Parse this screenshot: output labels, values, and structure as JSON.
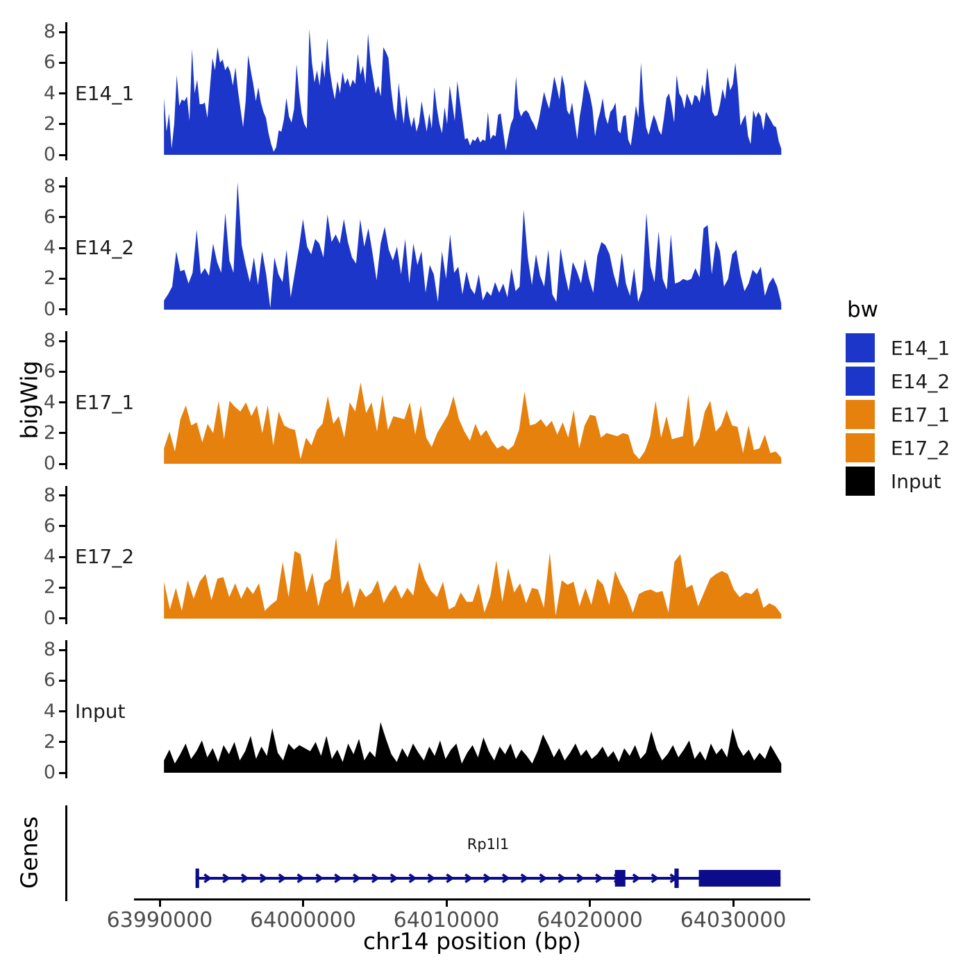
{
  "figure": {
    "ylabel": "bigWig",
    "genes_panel_label": "Genes",
    "xlabel": "chr14 position (bp)",
    "legend_title": "bw",
    "colors": {
      "e14_blue": "#1B36C8",
      "e17_orange": "#E6810D",
      "input_black": "#000000",
      "gene_navy": "#0B0B8C",
      "tick_text": "#4d4d4d"
    },
    "gene": {
      "name": "Rp1l1",
      "chrom": "chr14",
      "strand": "+",
      "start": 63992500,
      "end": 64033300,
      "exons": [
        {
          "start": 63992500,
          "end": 63992750,
          "tall": true
        },
        {
          "start": 64021750,
          "end": 64022480,
          "tall": false
        },
        {
          "start": 64025900,
          "end": 64026200,
          "tall": true
        },
        {
          "start": 64027600,
          "end": 64033300,
          "tall": false
        }
      ]
    }
  },
  "chart_data": {
    "type": "area",
    "title": "",
    "xlabel": "chr14 position (bp)",
    "ylabel": "bigWig",
    "legend_title": "bw",
    "legend_position": "right",
    "grid": false,
    "x_axis": {
      "start": 63990300,
      "end": 64033350,
      "ticks": [
        63990000,
        64000000,
        64010000,
        64020000,
        64030000
      ],
      "tick_labels": [
        "63990000",
        "64000000",
        "64010000",
        "64020000",
        "64030000"
      ]
    },
    "y_axis": {
      "ticks": [
        0,
        2,
        4,
        6,
        8
      ],
      "tick_labels": [
        "0",
        "2",
        "4",
        "6",
        "8"
      ],
      "range": [
        0,
        8.7
      ],
      "per_track": true
    },
    "tracks": [
      {
        "name": "E14_1",
        "color": "#1B36C8",
        "values": [
          3.7,
          1.5,
          2.7,
          0.4,
          2.0,
          5.2,
          3.2,
          3.6,
          3.5,
          3.8,
          2.2,
          6.9,
          4.0,
          4.9,
          3.3,
          3.3,
          3.4,
          2.4,
          4.3,
          6.3,
          5.5,
          7.0,
          6.0,
          6.2,
          5.5,
          5.8,
          5.4,
          4.5,
          5.7,
          4.2,
          3.0,
          1.8,
          3.5,
          6.5,
          5.5,
          4.6,
          3.5,
          4.4,
          3.4,
          2.8,
          2.4,
          1.4,
          0.7,
          0.2,
          0.5,
          1.6,
          1.5,
          2.3,
          3.7,
          2.5,
          2.1,
          3.0,
          5.9,
          4.0,
          2.7,
          2.0,
          1.7,
          8.2,
          6.0,
          4.7,
          5.5,
          4.5,
          6.2,
          5.0,
          7.6,
          5.5,
          4.4,
          3.6,
          4.8,
          4.0,
          5.4,
          4.6,
          5.0,
          4.4,
          4.9,
          4.6,
          6.6,
          5.2,
          5.8,
          4.6,
          7.9,
          6.0,
          5.0,
          4.0,
          4.5,
          3.8,
          7.0,
          6.7,
          6.3,
          4.3,
          3.0,
          2.2,
          4.7,
          3.2,
          2.0,
          3.9,
          2.6,
          1.8,
          2.5,
          1.5,
          2.1,
          3.5,
          2.5,
          1.5,
          2.7,
          1.7,
          4.4,
          3.0,
          2.0,
          1.4,
          3.1,
          2.0,
          4.5,
          3.4,
          2.2,
          4.8,
          3.5,
          2.3,
          1.0,
          1.1,
          0.6,
          1.0,
          0.9,
          1.2,
          0.8,
          1.0,
          0.9,
          2.8,
          1.0,
          1.3,
          1.2,
          2.6,
          2.7,
          1.5,
          0.3,
          1.2,
          2.0,
          2.4,
          5.1,
          3.0,
          2.5,
          2.8,
          2.9,
          2.7,
          2.3,
          2.0,
          1.6,
          2.3,
          3.2,
          4.1,
          3.5,
          3.0,
          4.0,
          5.1,
          4.4,
          3.6,
          5.2,
          4.5,
          2.9,
          2.6,
          3.4,
          2.2,
          1.0,
          2.5,
          3.5,
          4.9,
          4.4,
          3.9,
          3.0,
          1.2,
          2.2,
          2.8,
          3.7,
          2.5,
          2.0,
          2.8,
          3.0,
          3.4,
          1.6,
          1.4,
          2.5,
          2.6,
          1.0,
          0.6,
          1.8,
          3.2,
          2.4,
          6.0,
          3.5,
          1.8,
          1.3,
          2.0,
          2.6,
          2.2,
          1.6,
          1.3,
          2.4,
          3.7,
          4.0,
          3.2,
          2.1,
          5.2,
          4.0,
          3.7,
          3.0,
          4.0,
          3.6,
          3.2,
          3.9,
          3.8,
          3.4,
          4.6,
          3.8,
          5.7,
          4.2,
          2.8,
          2.5,
          2.6,
          3.3,
          4.3,
          3.6,
          5.1,
          4.2,
          4.6,
          6.0,
          4.4,
          1.9,
          2.3,
          2.6,
          1.2,
          0.7,
          2.9,
          2.4,
          2.8,
          2.5,
          1.6,
          2.8,
          2.5,
          2.2,
          1.9,
          1.8,
          0.9,
          0.4
        ]
      },
      {
        "name": "E14_2",
        "color": "#1B36C8",
        "values": [
          0.6,
          1.0,
          1.5,
          3.8,
          2.5,
          2.6,
          1.7,
          2.4,
          5.2,
          2.3,
          2.7,
          2.2,
          4.3,
          3.1,
          2.4,
          6.3,
          3.2,
          2.4,
          8.3,
          4.2,
          2.9,
          1.8,
          3.4,
          1.6,
          3.8,
          2.3,
          0.1,
          3.4,
          2.3,
          1.8,
          3.9,
          0.8,
          2.4,
          4.0,
          5.9,
          4.1,
          3.6,
          4.6,
          4.3,
          3.4,
          6.2,
          4.4,
          4.9,
          4.3,
          5.9,
          4.4,
          3.4,
          3.0,
          5.9,
          4.1,
          5.3,
          3.7,
          1.9,
          4.3,
          5.4,
          3.9,
          3.2,
          4.1,
          2.3,
          4.6,
          1.7,
          4.3,
          2.9,
          3.8,
          1.1,
          2.9,
          2.3,
          0.5,
          3.8,
          2.0,
          4.9,
          2.4,
          2.8,
          1.0,
          2.5,
          1.4,
          1.0,
          2.3,
          0.6,
          1.2,
          0.9,
          1.8,
          1.1,
          1.7,
          0.8,
          2.7,
          1.2,
          1.5,
          6.5,
          3.4,
          1.6,
          3.6,
          2.2,
          1.5,
          3.9,
          1.0,
          0.5,
          4.0,
          2.4,
          1.2,
          3.1,
          2.5,
          1.7,
          3.3,
          2.0,
          1.1,
          3.5,
          4.4,
          4.2,
          3.6,
          2.3,
          1.4,
          3.7,
          1.7,
          0.9,
          2.7,
          0.5,
          1.3,
          6.3,
          2.8,
          1.8,
          5.1,
          2.0,
          1.3,
          4.9,
          1.7,
          1.8,
          2.0,
          1.9,
          2.0,
          2.7,
          2.1,
          5.3,
          5.5,
          2.3,
          4.5,
          3.8,
          1.5,
          2.0,
          3.6,
          3.9,
          2.3,
          1.2,
          1.7,
          2.6,
          2.3,
          2.8,
          0.9,
          1.7,
          2.1,
          1.5,
          0.4
        ]
      },
      {
        "name": "E17_1",
        "color": "#E6810D",
        "values": [
          1.0,
          2.1,
          0.8,
          2.9,
          3.8,
          2.5,
          2.7,
          1.4,
          2.6,
          2.0,
          4.1,
          1.6,
          4.1,
          3.7,
          3.4,
          4.0,
          3.1,
          3.8,
          2.0,
          3.8,
          1.2,
          3.4,
          2.5,
          2.3,
          2.2,
          0.3,
          1.7,
          1.2,
          2.2,
          2.6,
          4.4,
          2.6,
          3.1,
          1.7,
          4.0,
          3.4,
          5.3,
          3.3,
          4.0,
          2.1,
          4.5,
          2.2,
          3.1,
          3.0,
          2.9,
          4.0,
          1.9,
          3.8,
          1.7,
          1.1,
          2.0,
          2.6,
          3.2,
          4.4,
          2.9,
          2.1,
          1.5,
          2.6,
          1.8,
          2.2,
          1.5,
          1.0,
          1.2,
          0.9,
          1.2,
          2.2,
          4.7,
          2.5,
          2.6,
          2.9,
          2.4,
          2.8,
          1.9,
          2.7,
          1.7,
          3.5,
          1.0,
          2.5,
          3.2,
          3.1,
          1.7,
          2.0,
          1.9,
          1.8,
          2.0,
          1.9,
          0.7,
          0.3,
          0.8,
          1.8,
          4.1,
          1.7,
          3.1,
          1.6,
          1.7,
          1.8,
          4.5,
          1.1,
          1.7,
          3.4,
          4.1,
          2.1,
          2.5,
          3.5,
          2.5,
          2.4,
          0.7,
          2.5,
          0.9,
          1.0,
          1.9,
          0.7,
          0.8,
          0.4
        ]
      },
      {
        "name": "E17_2",
        "color": "#E6810D",
        "values": [
          2.4,
          0.6,
          2.0,
          0.5,
          2.5,
          1.3,
          2.4,
          2.9,
          1.2,
          2.6,
          2.7,
          1.4,
          2.3,
          1.3,
          2.1,
          1.6,
          2.3,
          0.5,
          0.9,
          1.2,
          3.7,
          1.4,
          4.4,
          4.2,
          1.7,
          3.0,
          0.8,
          2.3,
          2.6,
          5.3,
          1.6,
          2.5,
          0.7,
          2.0,
          1.4,
          1.7,
          2.5,
          1.0,
          1.7,
          2.2,
          1.3,
          2.0,
          1.5,
          3.7,
          2.5,
          1.8,
          1.4,
          2.4,
          0.6,
          0.8,
          1.7,
          1.1,
          1.1,
          2.3,
          0.4,
          1.5,
          3.8,
          1.1,
          3.3,
          1.7,
          2.3,
          1.0,
          2.0,
          1.9,
          0.7,
          4.3,
          0.2,
          2.5,
          2.2,
          2.4,
          0.8,
          2.0,
          0.9,
          2.6,
          2.2,
          0.9,
          3.1,
          2.2,
          1.5,
          0.4,
          1.6,
          1.8,
          1.9,
          1.7,
          1.8,
          0.4,
          3.7,
          4.2,
          2.0,
          2.2,
          0.8,
          1.7,
          2.6,
          2.9,
          3.1,
          2.9,
          1.9,
          1.4,
          1.7,
          1.6,
          2.0,
          0.7,
          1.0,
          0.8,
          0.3
        ]
      },
      {
        "name": "Input",
        "color": "#000000",
        "values": [
          0.8,
          1.5,
          0.6,
          1.2,
          1.9,
          0.9,
          1.4,
          2.1,
          1.0,
          1.6,
          0.7,
          1.8,
          1.2,
          2.0,
          0.8,
          1.4,
          2.4,
          0.9,
          1.7,
          1.1,
          2.9,
          1.3,
          0.8,
          1.9,
          1.5,
          1.8,
          1.6,
          1.4,
          2.0,
          1.1,
          2.4,
          0.9,
          1.5,
          0.7,
          1.9,
          1.2,
          2.2,
          0.8,
          1.4,
          1.0,
          3.3,
          2.2,
          1.2,
          0.7,
          1.6,
          1.0,
          1.9,
          1.3,
          0.8,
          1.7,
          1.1,
          2.1,
          0.9,
          1.5,
          1.9,
          0.6,
          1.3,
          1.8,
          1.0,
          2.3,
          1.4,
          0.8,
          1.7,
          1.2,
          1.9,
          0.9,
          1.5,
          1.1,
          0.6,
          1.4,
          2.5,
          1.8,
          1.0,
          1.6,
          0.8,
          1.3,
          1.9,
          1.1,
          1.5,
          0.9,
          1.2,
          1.7,
          1.0,
          1.4,
          0.7,
          1.6,
          1.1,
          1.8,
          0.9,
          1.3,
          2.7,
          1.5,
          0.8,
          1.2,
          1.8,
          1.0,
          1.5,
          2.1,
          0.9,
          1.4,
          0.8,
          1.9,
          1.2,
          1.6,
          1.0,
          2.9,
          1.7,
          1.1,
          1.5,
          0.8,
          1.3,
          0.9,
          1.8,
          1.2,
          0.6
        ]
      }
    ]
  }
}
